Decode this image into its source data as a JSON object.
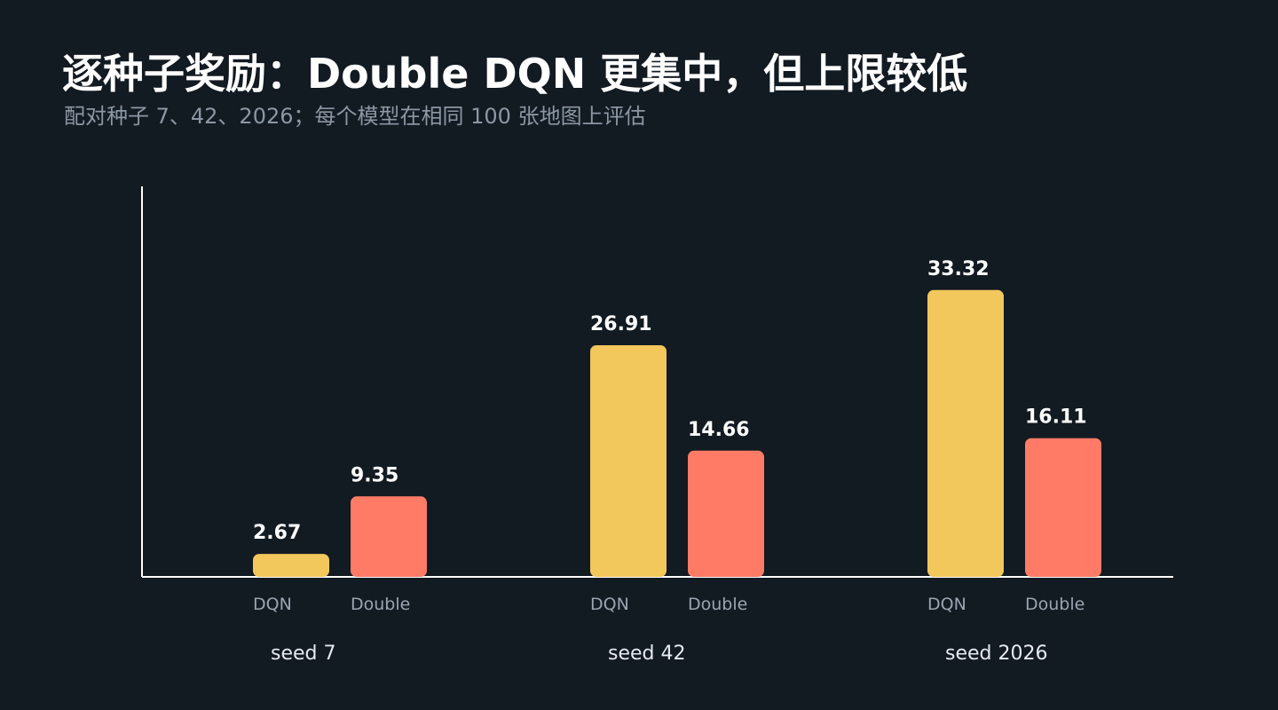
{
  "header": {
    "title": "逐种子奖励：Double DQN 更集中，但上限较低",
    "subtitle": "配对种子 7、42、2026；每个模型在相同 100 张地图上评估"
  },
  "chart_data": {
    "type": "bar",
    "title": "逐种子奖励：Double DQN 更集中，但上限较低",
    "subtitle": "配对种子 7、42、2026；每个模型在相同 100 张地图上评估",
    "categories": [
      "seed 7",
      "seed 42",
      "seed 2026"
    ],
    "series": [
      {
        "name": "DQN",
        "values": [
          2.67,
          26.91,
          33.32
        ],
        "color": "#f2c75c"
      },
      {
        "name": "Double",
        "values": [
          9.35,
          14.66,
          16.11
        ],
        "color": "#ff7b66"
      }
    ],
    "value_labels": [
      [
        "2.67",
        "26.91",
        "33.32"
      ],
      [
        "9.35",
        "14.66",
        "16.11"
      ]
    ],
    "xlabel": "",
    "ylabel": "",
    "ylim": [
      0,
      36
    ],
    "grid": false,
    "legend": "none",
    "colors": {
      "axis": "#ffffff",
      "background": "#121a22"
    }
  }
}
